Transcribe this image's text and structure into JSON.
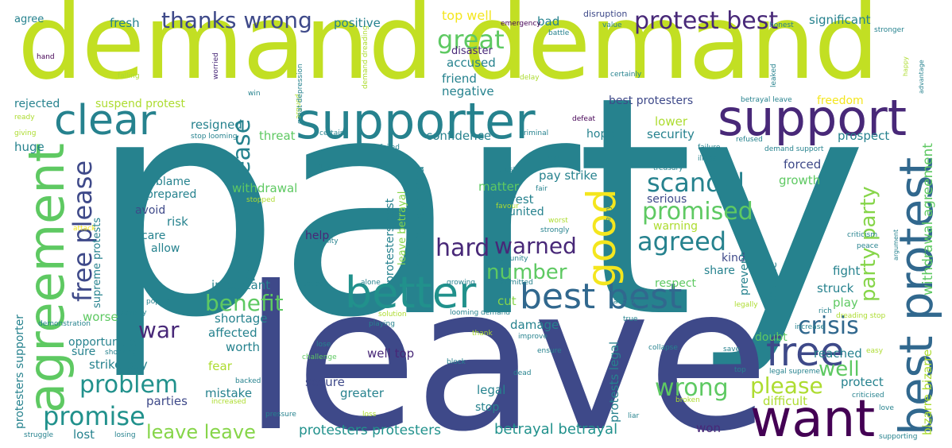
{
  "palette": {
    "lime": "#c2df23",
    "yellow": "#f4e61e",
    "green": "#5ec962",
    "green2": "#86d549",
    "teal": "#26828e",
    "teal2": "#21918c",
    "blue": "#31688e",
    "indigo": "#3e4989",
    "purple": "#482878",
    "dark": "#440154",
    "pale": "#addc30"
  },
  "words": {
    "party": "party",
    "leave": "leave",
    "demand_demand": "demand demand",
    "supporter": "supporter",
    "support": "support",
    "agreement": "agreement",
    "want": "want",
    "best_protest": "best protest",
    "better": "better",
    "best_best": "best best",
    "clear": "clear",
    "free": "free",
    "good": "good",
    "protest_best": "protest best",
    "thanks_wrong": "thanks wrong",
    "great": "great",
    "scandal": "scandal",
    "promised": "promised",
    "agreed": "agreed",
    "warned": "warned",
    "hard": "hard",
    "free_please": "free please",
    "please_please": "please please",
    "number": "number",
    "benefit": "benefit",
    "crisis": "crisis",
    "war": "war",
    "problem": "problem",
    "promise": "promise",
    "wrong": "wrong",
    "please": "please",
    "well": "well",
    "leave_leave": "leave leave",
    "party_party": "party party",
    "protesters_protesters": "protesters protesters",
    "betrayal_betrayal": "betrayal betrayal",
    "withdrawal_agreement": "withdrawal agreement",
    "bizarre_bizarre": "bizarre bizarre",
    "protests_legal": "protests legal",
    "protest_suspend": "protest suspend",
    "protesters_best": "protesters best",
    "protesters_supporter": "protesters supporter",
    "supreme_protests": "supreme protests",
    "leave_betrayal": "leave betrayal",
    "demand_dreading": "demand dreading",
    "agree": "agree",
    "fresh": "fresh",
    "positive": "positive",
    "top_well": "top well",
    "bad": "bad",
    "disruption": "disruption",
    "significant": "significant",
    "emergency": "emergency",
    "battle": "battle",
    "value": "value",
    "honest": "honest",
    "stronger": "stronger",
    "hand": "hand",
    "disaster": "disaster",
    "worried": "worried",
    "accused": "accused",
    "friend": "friend",
    "negative": "negative",
    "falling": "falling",
    "delay": "delay",
    "certainly": "certainly",
    "happy": "happy",
    "advantage": "advantage",
    "leaked": "leaked",
    "rejected": "rejected",
    "suspend_protest": "suspend protest",
    "win": "win",
    "argued": "argued",
    "great_depression": "great depression",
    "best_protesters": "best protesters",
    "freedom": "freedom",
    "betrayal_leave": "betrayal leave",
    "ready": "ready",
    "resigned": "resigned",
    "lower": "lower",
    "defeat": "defeat",
    "giving": "giving",
    "stop_looming": "stop looming",
    "certain": "certain",
    "criminal": "criminal",
    "huge": "huge",
    "threat": "threat",
    "confidence": "confidence",
    "security": "security",
    "prospect": "prospect",
    "hope": "hope",
    "failed": "failed",
    "failure": "failure",
    "refused": "refused",
    "demand_support": "demand support",
    "illegal": "illegal",
    "lies": "lies",
    "truly": "truly",
    "trust": "trust",
    "pay_strike": "pay strike",
    "forced": "forced",
    "treasury": "treasury",
    "blame": "blame",
    "withdrawal": "withdrawal",
    "matter": "matter",
    "fair": "fair",
    "growth": "growth",
    "prepared": "prepared",
    "interest": "interest",
    "serious": "serious",
    "avoid": "avoid",
    "stopped": "stopped",
    "favour": "favour",
    "united": "united",
    "risk": "risk",
    "worst": "worst",
    "warning": "warning",
    "care": "care",
    "strongly": "strongly",
    "attack": "attack",
    "energy": "energy",
    "criticism": "criticism",
    "allow": "allow",
    "ability": "ability",
    "argument": "argument",
    "peace": "peace",
    "help": "help",
    "opportunity": "opportunity",
    "kind": "kind",
    "prevent": "prevent",
    "chance": "chance",
    "fight": "fight",
    "important": "important",
    "justice": "justice",
    "alone": "alone",
    "growing": "growing",
    "admitted": "admitted",
    "respect": "respect",
    "share": "share",
    "struck": "struck",
    "popular": "popular",
    "cut": "cut",
    "accept": "accept",
    "legally": "legally",
    "rich": "rich",
    "play": "play",
    "poverty": "poverty",
    "solution": "solution",
    "looming_demand": "looming demand",
    "true": "true",
    "dreading_stop": "dreading stop",
    "demonstration": "demonstration",
    "worse": "worse",
    "shortage": "shortage",
    "playing": "playing",
    "damage": "damage",
    "increase": "increase",
    "opportunities": "opportunities",
    "affected": "affected",
    "thank": "thank",
    "improve": "improve",
    "doubt": "doubt",
    "sure": "sure",
    "shocking": "shocking",
    "strike_pay": "strike pay",
    "worth": "worth",
    "lose": "lose",
    "well_top": "well top",
    "ensure": "ensure",
    "reached": "reached",
    "collapse": "collapse",
    "easy": "easy",
    "challenge": "challenge",
    "block": "block",
    "save": "save",
    "fear": "fear",
    "dead": "dead",
    "top": "top",
    "legal_supreme": "legal supreme",
    "secure": "secure",
    "protect": "protect",
    "mistake": "mistake",
    "greater": "greater",
    "legal": "legal",
    "backed": "backed",
    "criticised": "criticised",
    "parties": "parties",
    "increased": "increased",
    "difficult": "difficult",
    "stop": "stop",
    "broken": "broken",
    "love": "love",
    "pressure": "pressure",
    "loss": "loss",
    "liar": "liar",
    "won": "won",
    "struggle": "struggle",
    "losing": "losing",
    "lost": "lost",
    "supporting": "supporting"
  }
}
